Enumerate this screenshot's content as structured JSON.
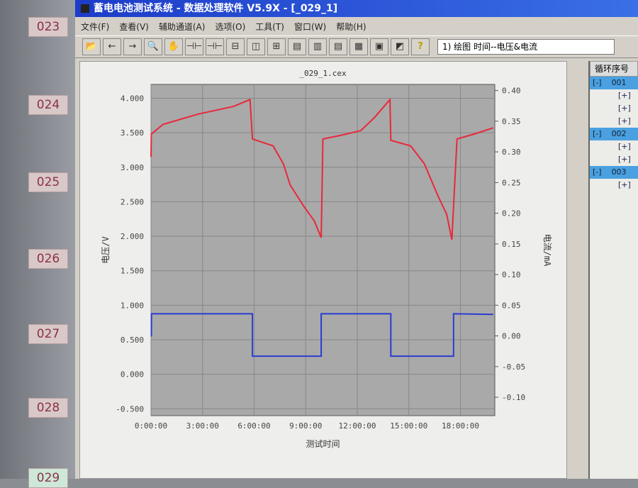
{
  "sidebar": {
    "labels": [
      "023",
      "024",
      "025",
      "026",
      "027",
      "028",
      "029"
    ]
  },
  "window": {
    "title": "蓄电电池测试系统 - 数据处理软件 V5.9X - [_029_1]"
  },
  "menu": [
    "文件(F)",
    "查看(V)",
    "辅助通道(A)",
    "选项(O)",
    "工具(T)",
    "窗口(W)",
    "帮助(H)"
  ],
  "toolbar": {
    "buttons": [
      "open-icon",
      "back-icon",
      "forward-icon",
      "zoom-icon",
      "hand-icon",
      "cursor-a-icon",
      "cursor-b-icon",
      "split-h-icon",
      "split-v-icon",
      "split-grid-icon",
      "page1-icon",
      "page2-icon",
      "page3-icon",
      "page4-icon",
      "print-icon",
      "chart-icon",
      "help-icon"
    ],
    "combo_value": "1) 绘图  时间--电压&电流"
  },
  "right_panel": {
    "header": "循环序号",
    "rows": [
      {
        "toggle": "[-]",
        "label": "001",
        "selected": true
      },
      {
        "toggle": "[+]"
      },
      {
        "toggle": "[+]"
      },
      {
        "toggle": "[+]"
      },
      {
        "toggle": "[-]",
        "label": "002",
        "selected": true
      },
      {
        "toggle": "[+]"
      },
      {
        "toggle": "[+]"
      },
      {
        "toggle": "[-]",
        "label": "003",
        "selected": true
      },
      {
        "toggle": "[+]"
      }
    ]
  },
  "chart_data": {
    "type": "line",
    "title": "_029_1.cex",
    "xlabel": "测试时间",
    "ylabel": "电压/V",
    "y2label": "电流/mA",
    "x_unit": "hours",
    "xlim": [
      0,
      20
    ],
    "ylim": [
      -0.6,
      4.2
    ],
    "y2lim": [
      -0.13,
      0.41
    ],
    "x_ticks": [
      0,
      3,
      6,
      9,
      12,
      15,
      18
    ],
    "x_tick_labels": [
      "0:00:00",
      "3:00:00",
      "6:00:00",
      "9:00:00",
      "12:00:00",
      "15:00:00",
      "18:00:00"
    ],
    "y_ticks": [
      "4.000",
      "3.500",
      "3.000",
      "2.500",
      "2.000",
      "1.500",
      "1.000",
      "0.500",
      "0.000",
      "-0.500"
    ],
    "y2_ticks": [
      "0.40",
      "0.35",
      "0.30",
      "0.25",
      "0.20",
      "0.15",
      "0.10",
      "0.05",
      "0.00",
      "-0.05",
      "-0.10"
    ],
    "grid": true,
    "background": "#a9a9a9",
    "series": [
      {
        "axis": "left",
        "color": "#e8283a",
        "x": [
          0,
          0.02,
          0.7,
          2.75,
          4.8,
          5.76,
          5.9,
          7.1,
          7.7,
          8.1,
          8.9,
          9.5,
          9.9,
          10.0,
          11.0,
          12.2,
          13.0,
          13.9,
          13.95,
          15.1,
          15.9,
          16.7,
          17.2,
          17.5,
          17.8,
          18.8,
          19.9
        ],
        "y": [
          3.15,
          3.48,
          3.62,
          3.77,
          3.88,
          3.98,
          3.41,
          3.31,
          3.05,
          2.74,
          2.43,
          2.22,
          1.98,
          3.41,
          3.46,
          3.53,
          3.72,
          3.98,
          3.39,
          3.31,
          3.05,
          2.58,
          2.32,
          1.95,
          3.41,
          3.48,
          3.57
        ]
      },
      {
        "axis": "right",
        "color": "#2a3cd0",
        "x": [
          0,
          0.02,
          0.03,
          5.9,
          5.9,
          9.9,
          9.9,
          13.95,
          13.95,
          17.6,
          17.6,
          19.9
        ],
        "y": [
          0.0,
          0.0,
          0.036,
          0.036,
          -0.033,
          -0.033,
          0.036,
          0.036,
          -0.033,
          -0.033,
          0.036,
          0.035
        ]
      }
    ]
  }
}
